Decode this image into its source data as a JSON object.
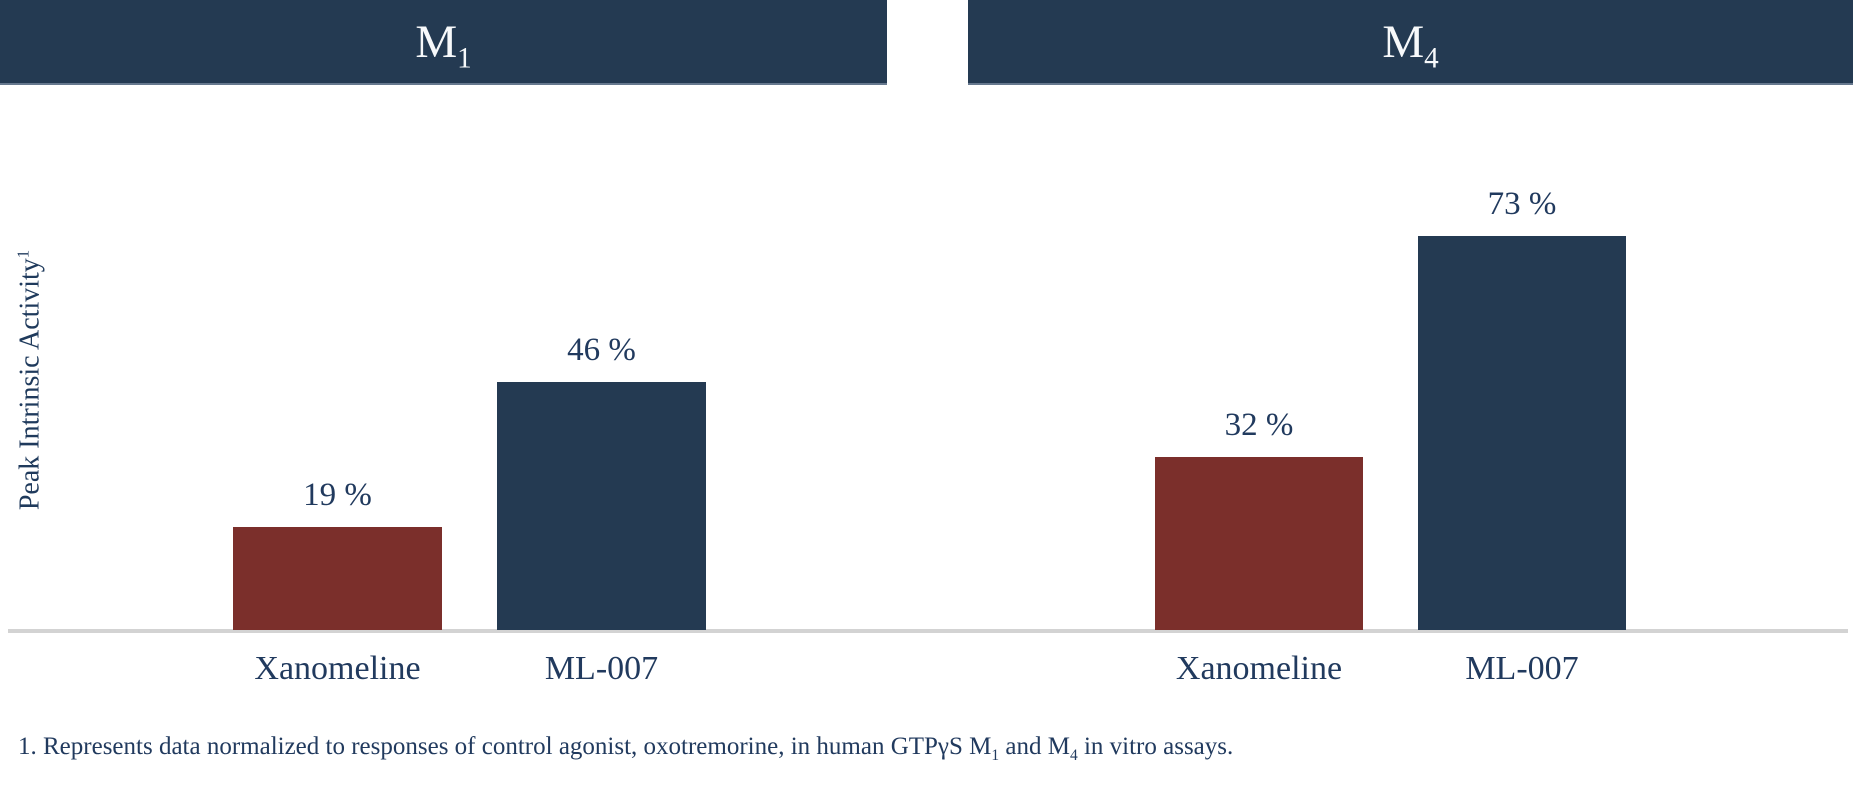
{
  "colors": {
    "banner_navy": "#243A52",
    "bar_navy": "#243A52",
    "bar_red": "#7B2F2B",
    "text_navy": "#213A5E",
    "axis_line_gray": "#D3D3D3",
    "header_text": "#FFFFFF"
  },
  "y_axis": {
    "label": "Peak Intrinsic Activity",
    "superscript": "1"
  },
  "chart_data": [
    {
      "type": "bar",
      "title": "M1",
      "title_base": "M",
      "title_sub": "1",
      "categories": [
        "Xanomeline",
        "ML-007"
      ],
      "values": [
        19,
        46
      ],
      "value_labels": [
        "19 %",
        "46 %"
      ],
      "bar_colors": [
        "#7B2F2B",
        "#243A52"
      ],
      "xlabel": "",
      "ylabel": "Peak Intrinsic Activity¹",
      "ylim": [
        0,
        100
      ],
      "grid": false,
      "legend": "none"
    },
    {
      "type": "bar",
      "title": "M4",
      "title_base": "M",
      "title_sub": "4",
      "categories": [
        "Xanomeline",
        "ML-007"
      ],
      "values": [
        32,
        73
      ],
      "value_labels": [
        "32 %",
        "73 %"
      ],
      "bar_colors": [
        "#7B2F2B",
        "#243A52"
      ],
      "xlabel": "",
      "ylabel": "Peak Intrinsic Activity¹",
      "ylim": [
        0,
        100
      ],
      "grid": false,
      "legend": "none"
    }
  ],
  "footnote": {
    "parts": [
      "1. Represents data normalized to responses of control agonist, oxotremorine, in human GTPγS M",
      "1",
      " and M",
      "4",
      " in vitro assays."
    ]
  }
}
